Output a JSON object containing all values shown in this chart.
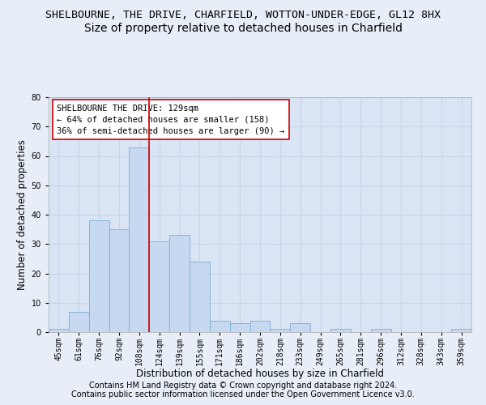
{
  "title": "SHELBOURNE, THE DRIVE, CHARFIELD, WOTTON-UNDER-EDGE, GL12 8HX",
  "subtitle": "Size of property relative to detached houses in Charfield",
  "xlabel": "Distribution of detached houses by size in Charfield",
  "ylabel": "Number of detached properties",
  "categories": [
    "45sqm",
    "61sqm",
    "76sqm",
    "92sqm",
    "108sqm",
    "124sqm",
    "139sqm",
    "155sqm",
    "171sqm",
    "186sqm",
    "202sqm",
    "218sqm",
    "233sqm",
    "249sqm",
    "265sqm",
    "281sqm",
    "296sqm",
    "312sqm",
    "328sqm",
    "343sqm",
    "359sqm"
  ],
  "values": [
    1,
    7,
    38,
    35,
    63,
    31,
    33,
    24,
    4,
    3,
    4,
    1,
    3,
    0,
    1,
    0,
    1,
    0,
    0,
    0,
    1
  ],
  "bar_color": "#c6d9f0",
  "bar_edge_color": "#7badd4",
  "ylim": [
    0,
    80
  ],
  "yticks": [
    0,
    10,
    20,
    30,
    40,
    50,
    60,
    70,
    80
  ],
  "vline_x": 4.5,
  "vline_color": "#cc0000",
  "annotation_text": "SHELBOURNE THE DRIVE: 129sqm\n← 64% of detached houses are smaller (158)\n36% of semi-detached houses are larger (90) →",
  "annotation_box_color": "#ffffff",
  "annotation_box_edge": "#cc0000",
  "footnote1": "Contains HM Land Registry data © Crown copyright and database right 2024.",
  "footnote2": "Contains public sector information licensed under the Open Government Licence v3.0.",
  "background_color": "#e8eef7",
  "plot_background": "#d9e4f5",
  "grid_color": "#c8d5e8",
  "title_fontsize": 9.5,
  "subtitle_fontsize": 10,
  "axis_label_fontsize": 8.5,
  "tick_fontsize": 7,
  "footnote_fontsize": 7,
  "annotation_fontsize": 7.5
}
